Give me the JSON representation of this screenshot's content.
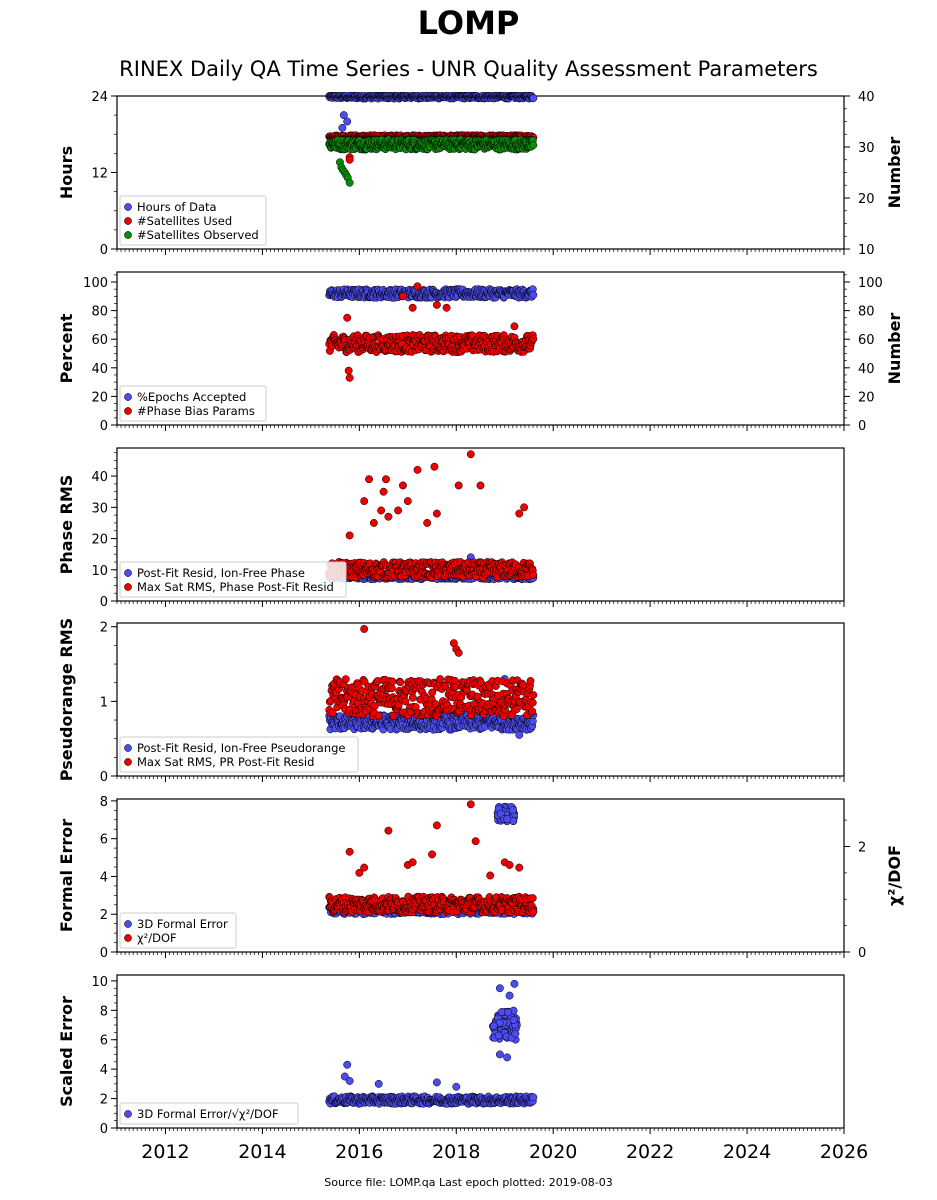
{
  "header": {
    "title": "LOMP",
    "subtitle": "RINEX Daily QA Time Series - UNR Quality Assessment Parameters"
  },
  "footer": {
    "source_label": "Source file:",
    "source_file": "LOMP.qa",
    "epoch_label": "Last epoch plotted:",
    "last_epoch": "2019-08-03"
  },
  "colors": {
    "blue": "#4c4cf0",
    "red": "#ee0000",
    "green": "#0a8a0a",
    "edge": "#000000"
  },
  "chart_data": [
    {
      "type": "scatter",
      "ylabel": "Hours",
      "ylabel_right": "Number",
      "xlim": [
        2011.0,
        2026.0
      ],
      "ylim": [
        0,
        24
      ],
      "yticks": [
        0,
        12,
        24
      ],
      "ylim_right": [
        10,
        40
      ],
      "yticks_right": [
        10,
        20,
        30,
        40
      ],
      "legend": "bottom-left",
      "series": [
        {
          "name": "Hours of Data",
          "color": "blue",
          "axis": "left",
          "x_start": 2015.38,
          "x_end": 2019.59,
          "base": 23.9,
          "spread": 0.3,
          "outliers": [
            [
              2015.6,
              17.0
            ],
            [
              2015.65,
              19.0
            ],
            [
              2015.68,
              21.0
            ],
            [
              2015.75,
              20.0
            ],
            [
              2015.8,
              16.0
            ]
          ]
        },
        {
          "name": "#Satellites Used",
          "color": "red",
          "axis": "right",
          "x_start": 2015.38,
          "x_end": 2019.59,
          "base": 32.0,
          "spread": 0.3,
          "outliers": [
            [
              2015.8,
              28.0
            ],
            [
              2015.8,
              27.5
            ]
          ]
        },
        {
          "name": "#Satellites Observed",
          "color": "green",
          "axis": "right",
          "x_start": 2015.38,
          "x_end": 2019.59,
          "base": 30.5,
          "spread": 1.0,
          "outliers": [
            [
              2015.6,
              27.0
            ],
            [
              2015.63,
              26.0
            ],
            [
              2015.66,
              25.5
            ],
            [
              2015.7,
              25.0
            ],
            [
              2015.73,
              24.5
            ],
            [
              2015.76,
              24.0
            ],
            [
              2015.8,
              23.0
            ]
          ]
        }
      ]
    },
    {
      "type": "scatter",
      "ylabel": "Percent",
      "ylabel_right": "Number",
      "xlim": [
        2011.0,
        2026.0
      ],
      "ylim": [
        0,
        107
      ],
      "yticks": [
        0,
        20,
        40,
        60,
        80,
        100
      ],
      "ylim_right": [
        0,
        107
      ],
      "yticks_right": [
        0,
        20,
        40,
        60,
        80,
        100
      ],
      "legend": "bottom-left",
      "series": [
        {
          "name": "%Epochs Accepted",
          "color": "blue",
          "axis": "left",
          "x_start": 2015.38,
          "x_end": 2019.59,
          "base": 92.0,
          "spread": 3.0,
          "outliers": []
        },
        {
          "name": "#Phase Bias Params",
          "color": "red",
          "axis": "right",
          "x_start": 2015.38,
          "x_end": 2019.59,
          "base": 57.0,
          "spread": 6.0,
          "outliers": [
            [
              2015.75,
              75.0
            ],
            [
              2015.8,
              33.0
            ],
            [
              2015.78,
              38.0
            ],
            [
              2016.9,
              90.0
            ],
            [
              2017.1,
              82.0
            ],
            [
              2017.2,
              97.0
            ],
            [
              2017.6,
              84.0
            ],
            [
              2017.8,
              82.0
            ],
            [
              2019.2,
              69.0
            ]
          ]
        }
      ]
    },
    {
      "type": "scatter",
      "ylabel": "Phase RMS",
      "xlim": [
        2011.0,
        2026.0
      ],
      "ylim": [
        0,
        49
      ],
      "yticks": [
        0,
        10,
        20,
        30,
        40
      ],
      "legend": "bottom-left",
      "series": [
        {
          "name": "Post-Fit Resid, Ion-Free Phase",
          "color": "blue",
          "axis": "left",
          "x_start": 2015.38,
          "x_end": 2019.59,
          "base": 8.0,
          "spread": 1.0,
          "outliers": [
            [
              2018.3,
              14.0
            ]
          ]
        },
        {
          "name": "Max Sat RMS, Phase Post-Fit Resid",
          "color": "red",
          "axis": "left",
          "x_start": 2015.38,
          "x_end": 2019.59,
          "base": 10.0,
          "spread": 2.5,
          "outliers": [
            [
              2015.8,
              21.0
            ],
            [
              2016.1,
              32.0
            ],
            [
              2016.2,
              39.0
            ],
            [
              2016.3,
              25.0
            ],
            [
              2016.45,
              29.0
            ],
            [
              2016.5,
              35.0
            ],
            [
              2016.55,
              39.0
            ],
            [
              2016.6,
              27.0
            ],
            [
              2016.8,
              29.0
            ],
            [
              2016.9,
              37.0
            ],
            [
              2017.0,
              32.0
            ],
            [
              2017.2,
              42.0
            ],
            [
              2017.4,
              25.0
            ],
            [
              2017.55,
              43.0
            ],
            [
              2017.6,
              28.0
            ],
            [
              2018.05,
              37.0
            ],
            [
              2018.3,
              47.0
            ],
            [
              2018.5,
              37.0
            ],
            [
              2019.3,
              28.0
            ],
            [
              2019.4,
              30.0
            ]
          ]
        }
      ]
    },
    {
      "type": "scatter",
      "ylabel": "Pseudorange RMS",
      "xlim": [
        2011.0,
        2026.0
      ],
      "ylim": [
        0,
        2.05
      ],
      "yticks": [
        0,
        1,
        2
      ],
      "legend": "bottom-left",
      "series": [
        {
          "name": "Post-Fit Resid, Ion-Free Pseudorange",
          "color": "blue",
          "axis": "left",
          "x_start": 2015.38,
          "x_end": 2019.59,
          "base": 0.72,
          "spread": 0.1,
          "outliers": [
            [
              2019.0,
              1.3
            ],
            [
              2019.3,
              0.55
            ]
          ]
        },
        {
          "name": "Max Sat RMS, PR Post-Fit Resid",
          "color": "red",
          "axis": "left",
          "x_start": 2015.38,
          "x_end": 2019.59,
          "base": 1.05,
          "spread": 0.25,
          "outliers": [
            [
              2016.1,
              1.97
            ],
            [
              2017.95,
              1.78
            ],
            [
              2018.0,
              1.7
            ],
            [
              2018.05,
              1.65
            ]
          ]
        }
      ]
    },
    {
      "type": "scatter",
      "ylabel": "Formal Error",
      "ylabel_right": "χ²/DOF",
      "xlim": [
        2011.0,
        2026.0
      ],
      "ylim": [
        0,
        8.1
      ],
      "yticks": [
        0,
        2,
        4,
        6,
        8
      ],
      "ylim_right": [
        0,
        2.9
      ],
      "yticks_right": [
        0,
        2
      ],
      "legend": "bottom-left",
      "series": [
        {
          "name": "3D Formal Error",
          "color": "blue",
          "axis": "left",
          "x_start": 2015.38,
          "x_end": 2019.59,
          "base": 2.3,
          "spread": 0.3,
          "cluster": {
            "x_start": 2018.85,
            "x_end": 2019.2,
            "base": 7.3,
            "spread": 0.4
          }
        },
        {
          "name": "χ²/DOF",
          "color": "red",
          "axis": "right",
          "x_start": 2015.38,
          "x_end": 2019.59,
          "base": 0.9,
          "spread": 0.15,
          "outliers": [
            [
              2015.8,
              1.9
            ],
            [
              2016.0,
              1.5
            ],
            [
              2016.1,
              1.6
            ],
            [
              2016.6,
              2.3
            ],
            [
              2017.0,
              1.65
            ],
            [
              2017.1,
              1.7
            ],
            [
              2017.6,
              2.4
            ],
            [
              2017.5,
              1.85
            ],
            [
              2018.3,
              2.8
            ],
            [
              2018.4,
              2.1
            ],
            [
              2018.7,
              1.45
            ],
            [
              2019.0,
              1.7
            ],
            [
              2019.1,
              1.65
            ],
            [
              2019.3,
              1.6
            ]
          ]
        }
      ]
    },
    {
      "type": "scatter",
      "ylabel": "Scaled Error",
      "xlim": [
        2011.0,
        2026.0
      ],
      "ylim": [
        0,
        10.4
      ],
      "yticks": [
        0,
        2,
        4,
        6,
        8,
        10
      ],
      "xticks": [
        2012,
        2014,
        2016,
        2018,
        2020,
        2022,
        2024,
        2026
      ],
      "legend": "bottom-left",
      "series": [
        {
          "name": "3D Formal Error/√χ²/DOF",
          "color": "blue",
          "axis": "left",
          "x_start": 2015.38,
          "x_end": 2019.59,
          "base": 1.9,
          "spread": 0.25,
          "cluster": {
            "x_start": 2018.75,
            "x_end": 2019.25,
            "base": 7.0,
            "spread": 1.0
          },
          "outliers": [
            [
              2015.75,
              4.3
            ],
            [
              2015.7,
              3.5
            ],
            [
              2015.8,
              3.2
            ],
            [
              2016.4,
              3.0
            ],
            [
              2017.6,
              3.1
            ],
            [
              2018.0,
              2.8
            ],
            [
              2019.2,
              9.8
            ],
            [
              2018.9,
              9.5
            ],
            [
              2019.1,
              9.0
            ],
            [
              2019.05,
              4.8
            ],
            [
              2018.9,
              5.0
            ]
          ]
        }
      ]
    }
  ]
}
